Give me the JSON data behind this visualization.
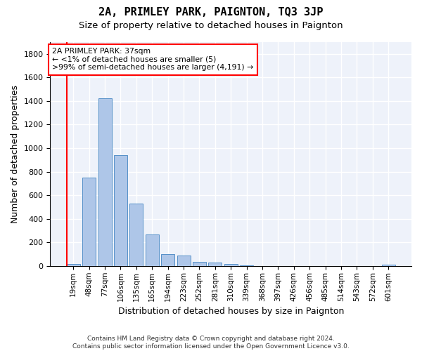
{
  "title": "2A, PRIMLEY PARK, PAIGNTON, TQ3 3JP",
  "subtitle": "Size of property relative to detached houses in Paignton",
  "xlabel": "Distribution of detached houses by size in Paignton",
  "ylabel": "Number of detached properties",
  "footer_line1": "Contains HM Land Registry data © Crown copyright and database right 2024.",
  "footer_line2": "Contains public sector information licensed under the Open Government Licence v3.0.",
  "categories": [
    "19sqm",
    "48sqm",
    "77sqm",
    "106sqm",
    "135sqm",
    "165sqm",
    "194sqm",
    "223sqm",
    "252sqm",
    "281sqm",
    "310sqm",
    "339sqm",
    "368sqm",
    "397sqm",
    "426sqm",
    "456sqm",
    "485sqm",
    "514sqm",
    "543sqm",
    "572sqm",
    "601sqm"
  ],
  "values": [
    20,
    748,
    1424,
    938,
    530,
    265,
    103,
    90,
    38,
    27,
    15,
    5,
    2,
    1,
    1,
    1,
    1,
    1,
    1,
    1,
    10
  ],
  "bar_color": "#aec6e8",
  "bar_edge_color": "#5590c8",
  "annotation_line1": "2A PRIMLEY PARK: 37sqm",
  "annotation_line2": "← <1% of detached houses are smaller (5)",
  "annotation_line3": ">99% of semi-detached houses are larger (4,191) →",
  "annotation_edge_color": "red",
  "ylim": [
    0,
    1900
  ],
  "yticks": [
    0,
    200,
    400,
    600,
    800,
    1000,
    1200,
    1400,
    1600,
    1800
  ],
  "bg_color": "#eef2fa",
  "grid_color": "#ffffff",
  "title_fontsize": 11,
  "subtitle_fontsize": 9.5,
  "tick_fontsize": 7.5,
  "ylabel_fontsize": 9,
  "xlabel_fontsize": 9,
  "footer_fontsize": 6.5
}
